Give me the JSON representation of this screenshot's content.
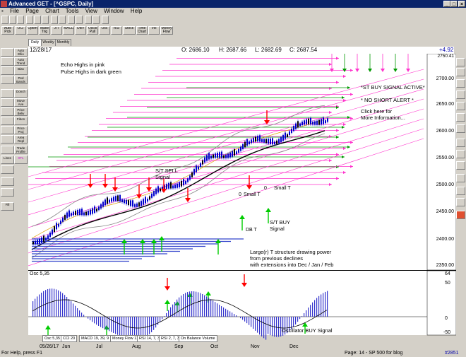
{
  "window": {
    "title": "Advanced GET - [^GSPC, Daily]",
    "menu": [
      "File",
      "Page",
      "Chart",
      "Tools",
      "View",
      "Window",
      "Help"
    ]
  },
  "toolbar_row1": [
    "Auto Pick",
    "OCI",
    "Optim",
    "Make Trig",
    "JTI",
    "MACD",
    "OBV",
    "Oscill Pull",
    "Osc",
    "RSI",
    "Stock",
    "Time Chart",
    "Vol",
    "Money Flow"
  ],
  "toolbar_row2": [
    "Auto Ellio",
    "Auto Trend",
    "Bias",
    "Ped Bands",
    "Donch",
    "Move Ave",
    "Price Beliv",
    "Fibon",
    "Price Proj",
    "Area Repl",
    "Trade Profile",
    "XTL",
    "Lines",
    "Fill"
  ],
  "timeframe_tabs": [
    "Daily",
    "Weekly",
    "Monthly"
  ],
  "info_bar": {
    "date": "12/28/17",
    "open": "O: 2686.10",
    "high": "H: 2687.66",
    "low": "L: 2682.69",
    "close": "C: 2687.54",
    "change": "+4.92"
  },
  "annotations": {
    "echo_highs": "Echo Highs in pink",
    "pulse_highs": "Pulse Highs in dark green",
    "st_buy_signal": "*ST BUY SIGNAL ACTIVE*",
    "no_short_alert": "* NO SHORT ALERT *",
    "click_here": "Click here for",
    "more_info": "More Information...",
    "st_sell_1": "S/T SELL",
    "st_sell_2": "Signal",
    "small_t_1": "Small T",
    "small_t_2": "Small T",
    "zero_1": "0",
    "zero_2": "0",
    "db_t": "DB T",
    "st_buy_1": "S/T BUY",
    "st_buy_2": "Signal",
    "larger_t_1": "Large(r) T structure drawing power",
    "larger_t_2": "from previous declines",
    "larger_t_3": "with extensions into Dec / Jan / Feb",
    "osc_buy": "Oscillator BUY Signal"
  },
  "price_axis": [
    "2750.41",
    "2700.00",
    "2650.00",
    "2600.00",
    "2550.00",
    "2500.00",
    "2450.00",
    "2400.00",
    "2350.00"
  ],
  "osc": {
    "label": "Osc 5,35",
    "axis": [
      "64",
      "50",
      "0",
      "-50"
    ]
  },
  "bottom_tabs": [
    "Osc 5,35",
    "CCI 20",
    "MACD 19, 39, 9",
    "Money Flow 11",
    "RSI 14, 7, 3",
    "RSI 2, 7, 3",
    "On Balance Volume"
  ],
  "date_axis": [
    "05/26/17",
    "Jun",
    "Jul",
    "Aug",
    "Sep",
    "Oct",
    "Nov",
    "Dec"
  ],
  "status": {
    "help": "For Help, press F1",
    "page": "Page: 14 - SP 500 for blog",
    "code": "#2851"
  },
  "colors": {
    "echo": "#ff33cc",
    "pulse": "#009900",
    "sell_arrow": "#ff0000",
    "buy_arrow": "#00cc00",
    "candles": "#0000cc",
    "osc_bars": "#3333cc"
  }
}
